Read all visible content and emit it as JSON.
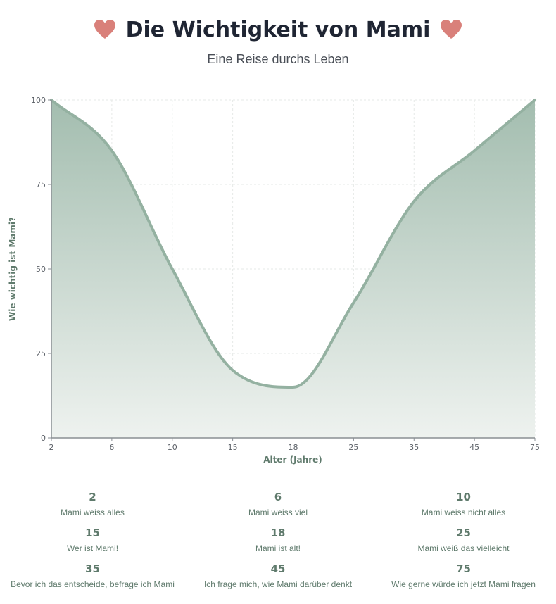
{
  "header": {
    "title": "Die Wichtigkeit von Mami",
    "subtitle": "Eine Reise durchs Leben",
    "heart_icon": "heart-icon"
  },
  "colors": {
    "line": "#94b1a1",
    "fill_top": "#a3bdaf",
    "fill_bottom": "#eef2ef",
    "heart": "#d9807a",
    "accent_text": "#5f7a6c"
  },
  "chart_data": {
    "type": "area",
    "title": "",
    "xlabel": "Alter (Jahre)",
    "ylabel": "Wie wichtig ist Mami?",
    "x_scale": "categorical",
    "categories": [
      "2",
      "6",
      "10",
      "15",
      "18",
      "25",
      "35",
      "45",
      "75"
    ],
    "values": [
      100,
      85,
      50,
      20,
      15,
      40,
      70,
      85,
      100
    ],
    "ylim": [
      0,
      100
    ],
    "yticks": [
      0,
      25,
      50,
      75,
      100
    ],
    "grid": true,
    "series": [
      {
        "values": [
          100,
          85,
          50,
          20,
          15,
          40,
          70,
          85,
          100
        ]
      }
    ]
  },
  "milestones": [
    {
      "age": "2",
      "text": "Mami weiss alles"
    },
    {
      "age": "6",
      "text": "Mami weiss viel"
    },
    {
      "age": "10",
      "text": "Mami weiss nicht alles"
    },
    {
      "age": "15",
      "text": "Wer ist Mami!"
    },
    {
      "age": "18",
      "text": "Mami ist alt!"
    },
    {
      "age": "25",
      "text": "Mami weiß das vielleicht"
    },
    {
      "age": "35",
      "text": "Bevor ich das entscheide, befrage ich Mami"
    },
    {
      "age": "45",
      "text": "Ich frage mich, wie Mami darüber denkt"
    },
    {
      "age": "75",
      "text": "Wie gerne würde ich jetzt Mami fragen"
    }
  ]
}
